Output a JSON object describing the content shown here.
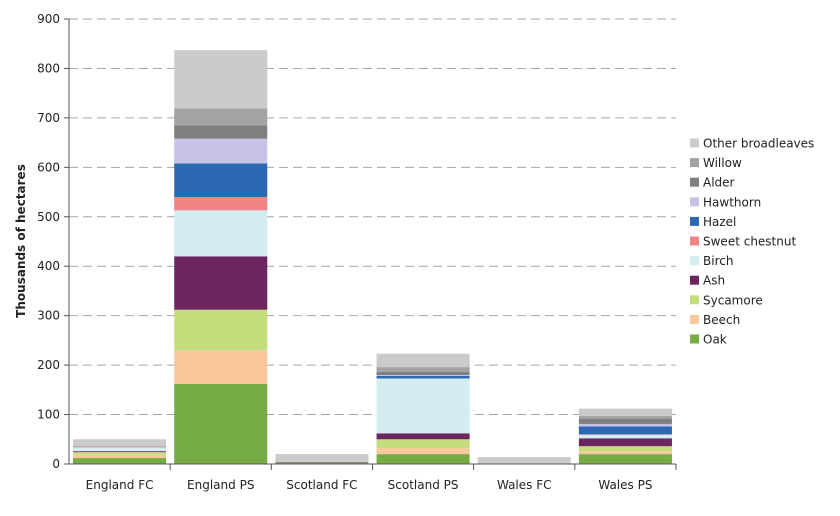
{
  "chart_data": {
    "type": "bar",
    "stacked": true,
    "title": "",
    "xlabel": "",
    "ylabel": "Thousands of hectares",
    "ylim": [
      0,
      900
    ],
    "yticks": [
      0,
      100,
      200,
      300,
      400,
      500,
      600,
      700,
      800,
      900
    ],
    "grid": "horizontal dashed",
    "legend_position": "right",
    "categories": [
      "England FC",
      "England PS",
      "Scotland FC",
      "Scotland PS",
      "Wales FC",
      "Wales PS"
    ],
    "series": [
      {
        "name": "Oak",
        "color": "#77ab43",
        "values": [
          12,
          162,
          2,
          20,
          1,
          20
        ]
      },
      {
        "name": "Beech",
        "color": "#f8c89c",
        "values": [
          7,
          68,
          0,
          12,
          0,
          6
        ]
      },
      {
        "name": "Sycamore",
        "color": "#c5de7d",
        "values": [
          5,
          82,
          0,
          18,
          0,
          10
        ]
      },
      {
        "name": "Ash",
        "color": "#6b2660",
        "values": [
          2,
          108,
          1,
          12,
          0,
          16
        ]
      },
      {
        "name": "Birch",
        "color": "#d3edf1",
        "values": [
          7,
          93,
          0,
          111,
          0,
          7
        ]
      },
      {
        "name": "Sweet chestnut",
        "color": "#f08383",
        "values": [
          1,
          27,
          0,
          0,
          0,
          1
        ]
      },
      {
        "name": "Hazel",
        "color": "#2e67b2",
        "values": [
          0,
          68,
          0,
          5,
          0,
          16
        ]
      },
      {
        "name": "Hawthorn",
        "color": "#c7c3e6",
        "values": [
          1,
          50,
          0,
          2,
          0,
          5
        ]
      },
      {
        "name": "Alder",
        "color": "#7f7f7f",
        "values": [
          1,
          27,
          0,
          6,
          0,
          10
        ]
      },
      {
        "name": "Willow",
        "color": "#a3a3a3",
        "values": [
          1,
          34,
          0,
          10,
          0,
          6
        ]
      },
      {
        "name": "Other broadleaves",
        "color": "#cbcbcb",
        "values": [
          13,
          118,
          17,
          27,
          13,
          15
        ]
      }
    ]
  }
}
